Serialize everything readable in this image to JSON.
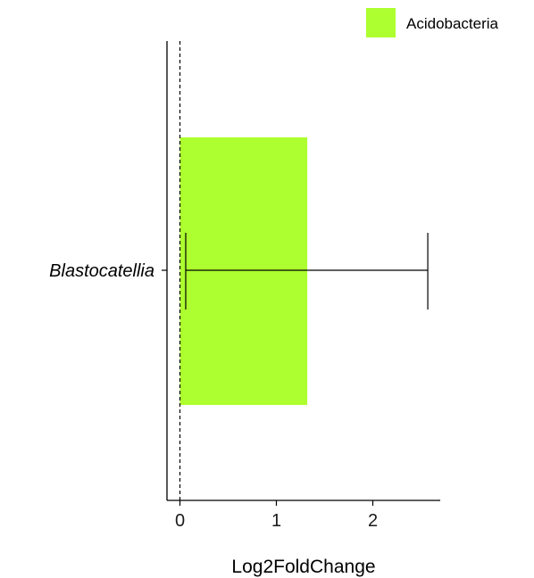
{
  "chart_data": {
    "type": "bar",
    "orientation": "horizontal",
    "categories": [
      "Blastocatellia"
    ],
    "series": [
      {
        "name": "Acidobacteria",
        "values": [
          1.32
        ],
        "error_low": [
          0.06
        ],
        "error_high": [
          2.57
        ],
        "color": "#adff2f"
      }
    ],
    "xlabel": "Log2FoldChange",
    "ylabel": "",
    "x_ticks": [
      0,
      1,
      2
    ],
    "xlim": [
      -0.14,
      2.68
    ],
    "reference_line": 0,
    "grid": false,
    "legend_position": "top-right"
  }
}
